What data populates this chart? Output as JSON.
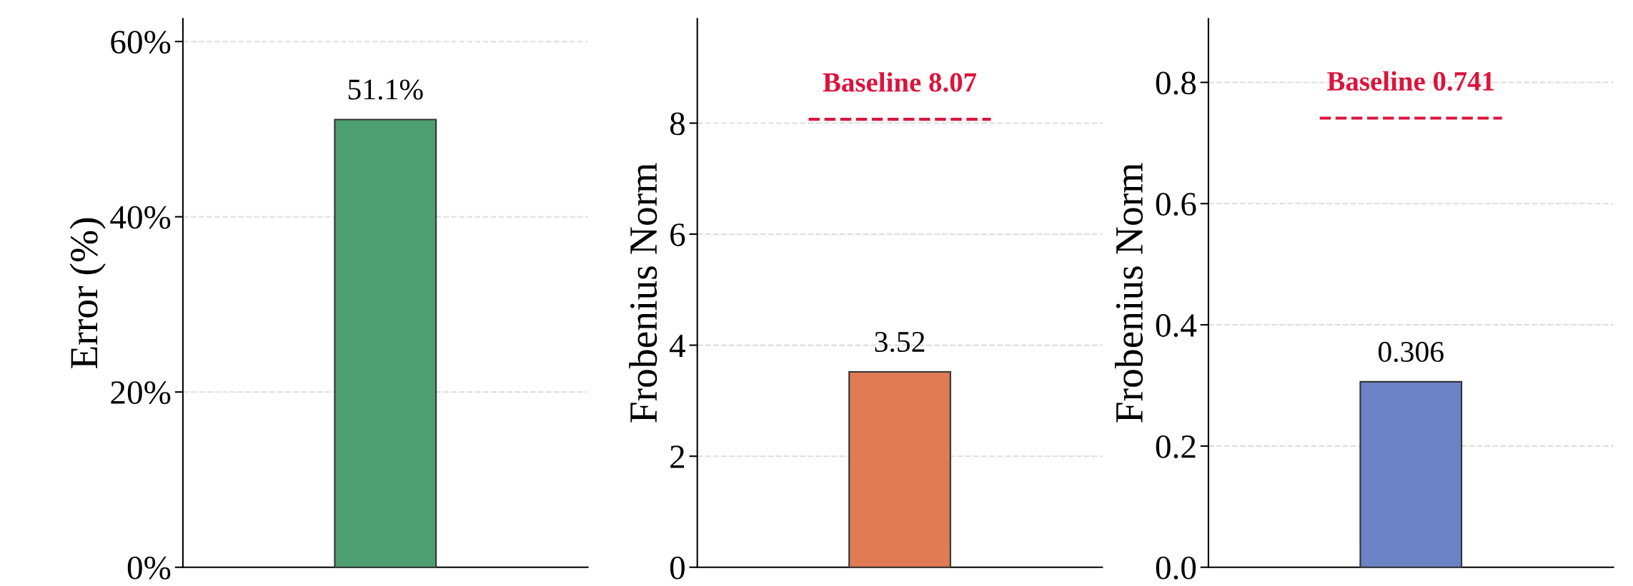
{
  "chart_data": [
    {
      "type": "bar",
      "ylabel": "Error (%)",
      "categories": [
        null
      ],
      "values": [
        51.1
      ],
      "color": "#4e9f6f",
      "value_labels": [
        "51.1%"
      ],
      "ylim": [
        0,
        62.6
      ],
      "yticks": [
        {
          "value": 0,
          "label": "0%"
        },
        {
          "value": 20,
          "label": "20%"
        },
        {
          "value": 40,
          "label": "40%"
        },
        {
          "value": 60,
          "label": "60%"
        }
      ],
      "grid": "y"
    },
    {
      "type": "bar",
      "ylabel": "Frobenius Norm",
      "categories": [
        null
      ],
      "values": [
        3.52
      ],
      "color": "#e07b54",
      "data_labels": true,
      "ylim": [
        0,
        9.88
      ],
      "yticks": [
        0,
        2,
        4,
        6,
        8
      ],
      "grid": "y",
      "ref_lines": [
        {
          "axis": "y",
          "value": 8.07,
          "label": "Baseline 8.07",
          "color": "#dc143c",
          "line_style": "dashed"
        }
      ]
    },
    {
      "type": "bar",
      "ylabel": "Frobenius Norm",
      "categories": [
        null
      ],
      "values": [
        0.306
      ],
      "color": "#6b82c4",
      "data_labels": true,
      "ylim": [
        0,
        0.905
      ],
      "yticks": [
        {
          "value": 0,
          "label": "0.0"
        },
        0.2,
        0.4,
        0.6,
        0.8
      ],
      "grid": "y",
      "ref_lines": [
        {
          "axis": "y",
          "value": 0.741,
          "label": "Baseline 0.741",
          "color": "#dc143c",
          "line_style": "dashed"
        }
      ]
    }
  ]
}
